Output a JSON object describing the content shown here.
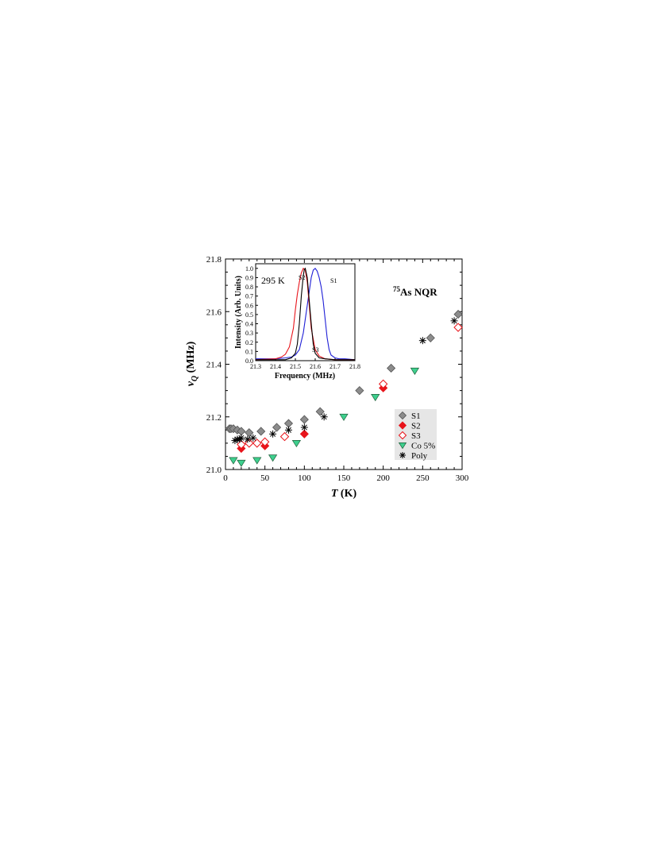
{
  "chart_data": [
    {
      "type": "scatter",
      "xlabel": "T (K)",
      "ylabel": "νQ (MHz)",
      "xlim": [
        0,
        300
      ],
      "ylim": [
        21.0,
        21.8
      ],
      "x_ticks": [
        "0",
        "50",
        "100",
        "150",
        "200",
        "250",
        "300"
      ],
      "y_ticks": [
        "21.0",
        "21.2",
        "21.4",
        "21.6",
        "21.8"
      ],
      "annotation": "75As NQR",
      "legend_position": "bottom-right",
      "grid": false,
      "series": [
        {
          "name": "S1",
          "marker": "diamond-filled",
          "color": "#8c8c8c",
          "x": [
            5,
            7,
            10,
            15,
            20,
            30,
            45,
            65,
            80,
            100,
            120,
            170,
            210,
            260,
            295
          ],
          "y": [
            21.155,
            21.155,
            21.155,
            21.15,
            21.145,
            21.14,
            21.145,
            21.16,
            21.175,
            21.19,
            21.22,
            21.3,
            21.385,
            21.5,
            21.59
          ]
        },
        {
          "name": "S2",
          "marker": "diamond-filled",
          "color": "#e8141b",
          "x": [
            20,
            50,
            100,
            200
          ],
          "y": [
            21.08,
            21.09,
            21.135,
            21.31
          ]
        },
        {
          "name": "S3",
          "marker": "diamond-open",
          "color": "#e8141b",
          "x": [
            20,
            30,
            40,
            50,
            75,
            200,
            295
          ],
          "y": [
            21.095,
            21.1,
            21.1,
            21.105,
            21.125,
            21.325,
            21.54
          ]
        },
        {
          "name": "Co 5%",
          "marker": "triangle-down",
          "color": "#3ecf8e",
          "x": [
            10,
            20,
            40,
            60,
            90,
            150,
            190,
            240
          ],
          "y": [
            21.035,
            21.025,
            21.035,
            21.045,
            21.1,
            21.2,
            21.275,
            21.375
          ]
        },
        {
          "name": "Poly",
          "marker": "asterisk",
          "color": "#000000",
          "x": [
            12,
            15,
            18,
            20,
            28,
            35,
            60,
            80,
            100,
            125,
            250,
            290
          ],
          "y": [
            21.11,
            21.115,
            21.115,
            21.12,
            21.115,
            21.12,
            21.135,
            21.15,
            21.16,
            21.2,
            21.49,
            21.565
          ]
        }
      ]
    },
    {
      "type": "line",
      "xlabel": "Frequency (MHz)",
      "ylabel": "Intensity (Arb. Units)",
      "xlim": [
        21.3,
        21.8
      ],
      "ylim": [
        0,
        1.05
      ],
      "x_ticks": [
        "21.3",
        "21.4",
        "21.5",
        "21.6",
        "21.7",
        "21.8"
      ],
      "y_ticks": [
        "0.0",
        "0.1",
        "0.2",
        "0.3",
        "0.4",
        "0.5",
        "0.6",
        "0.7",
        "0.8",
        "0.9",
        "1.0"
      ],
      "annotation": "295 K",
      "series": [
        {
          "name": "S1",
          "color": "#1f1fd6",
          "x": [
            21.3,
            21.4,
            21.45,
            21.48,
            21.5,
            21.52,
            21.54,
            21.56,
            21.58,
            21.59,
            21.6,
            21.61,
            21.62,
            21.63,
            21.64,
            21.65,
            21.66,
            21.67,
            21.68,
            21.7,
            21.72,
            21.75,
            21.8
          ],
          "y": [
            0.02,
            0.02,
            0.03,
            0.04,
            0.06,
            0.12,
            0.3,
            0.6,
            0.9,
            0.98,
            1.0,
            0.97,
            0.9,
            0.8,
            0.65,
            0.45,
            0.25,
            0.12,
            0.06,
            0.03,
            0.02,
            0.02,
            0.01
          ]
        },
        {
          "name": "S2",
          "color": "#e8141b",
          "x": [
            21.3,
            21.4,
            21.43,
            21.45,
            21.47,
            21.49,
            21.5,
            21.51,
            21.52,
            21.53,
            21.54,
            21.55,
            21.56,
            21.57,
            21.58,
            21.6,
            21.62,
            21.65,
            21.7,
            21.8
          ],
          "y": [
            0.01,
            0.02,
            0.04,
            0.07,
            0.15,
            0.35,
            0.55,
            0.72,
            0.85,
            0.95,
            1.0,
            0.98,
            0.85,
            0.6,
            0.35,
            0.12,
            0.05,
            0.02,
            0.01,
            0.01
          ]
        },
        {
          "name": "S3",
          "color": "#000000",
          "x": [
            21.3,
            21.45,
            21.48,
            21.5,
            21.51,
            21.52,
            21.53,
            21.54,
            21.545,
            21.55,
            21.56,
            21.57,
            21.58,
            21.59,
            21.6,
            21.62,
            21.65,
            21.7,
            21.8
          ],
          "y": [
            0.01,
            0.01,
            0.03,
            0.08,
            0.18,
            0.4,
            0.7,
            0.92,
            0.99,
            1.0,
            0.9,
            0.65,
            0.4,
            0.18,
            0.08,
            0.03,
            0.02,
            0.01,
            0.01
          ]
        }
      ],
      "curve_labels": [
        "S2",
        "S1",
        "S3"
      ]
    }
  ]
}
